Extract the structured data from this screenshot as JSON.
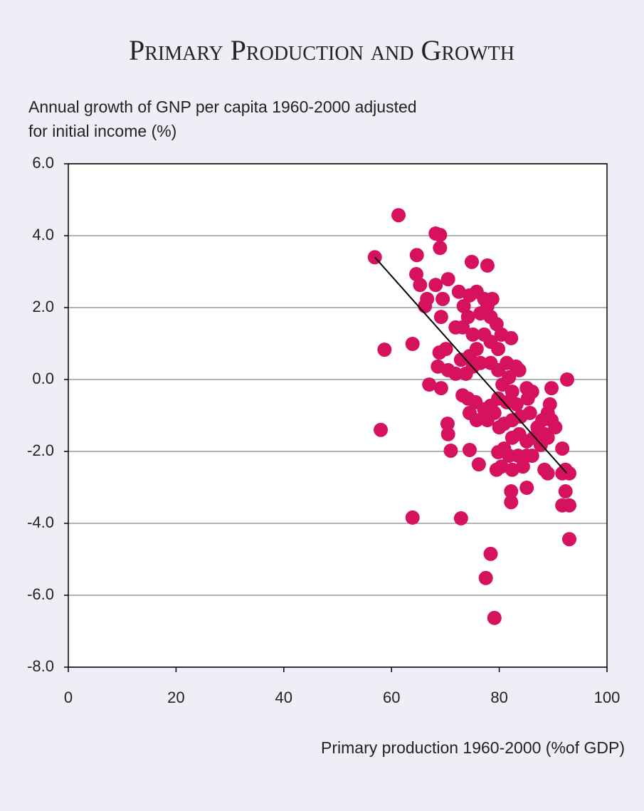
{
  "chart_data": {
    "type": "scatter",
    "title": "Primary Production and Growth",
    "ylabel": [
      "Annual growth of GNP per capita 1960-2000 adjusted",
      "for initial income (%)"
    ],
    "xlabel": "Primary production 1960-2000 (%of GDP)",
    "color": "#d6125e",
    "x": [
      56.9,
      61.3,
      58.7,
      58.0,
      63.9,
      63.9,
      68.2,
      69.0,
      69.0,
      74.9,
      77.8,
      64.7,
      64.6,
      65.3,
      66.6,
      66.2,
      68.2,
      70.5,
      69.5,
      69.2,
      68.9,
      70.1,
      68.6,
      69.2,
      67.0,
      70.4,
      70.5,
      71.0,
      72.9,
      74.5,
      76.2,
      78.4,
      77.5,
      79.1,
      72.5,
      73.4,
      74.5,
      75.8,
      74.2,
      73.2,
      71.9,
      75.1,
      76.5,
      77.2,
      77.8,
      78.7,
      78.4,
      79.5,
      78.4,
      79.8,
      77.2,
      75.8,
      74.5,
      72.9,
      71.9,
      70.5,
      73.8,
      75.1,
      76.5,
      78.4,
      79.8,
      81.4,
      82.2,
      80.4,
      81.8,
      83.1,
      80.6,
      82.4,
      83.7,
      85.1,
      86.1,
      85.3,
      83.2,
      81.4,
      79.8,
      78.4,
      77.2,
      75.6,
      74.2,
      73.2,
      74.5,
      75.8,
      77.8,
      79.1,
      80.0,
      80.9,
      82.4,
      84.0,
      85.7,
      87.1,
      88.0,
      89.0,
      90.4,
      89.0,
      87.7,
      86.4,
      85.1,
      83.7,
      82.4,
      80.9,
      79.8,
      81.8,
      83.5,
      85.1,
      84.4,
      82.4,
      80.4,
      79.5,
      82.2,
      82.2,
      85.1,
      86.1,
      87.7,
      88.4,
      89.7,
      89.4,
      91.7,
      92.3,
      91.7,
      93.0,
      88.4,
      89.0,
      92.3,
      93.0,
      91.7,
      93.0,
      92.6,
      89.7
    ],
    "y": [
      3.4,
      4.57,
      0.83,
      -1.4,
      0.99,
      -3.84,
      4.06,
      4.02,
      3.66,
      3.27,
      3.17,
      3.46,
      2.93,
      2.63,
      2.24,
      2.04,
      2.63,
      2.79,
      2.24,
      1.74,
      0.75,
      0.85,
      0.36,
      -0.24,
      -0.14,
      -1.23,
      -1.52,
      -1.98,
      -3.86,
      -1.96,
      -2.36,
      -4.85,
      -5.52,
      -6.63,
      2.44,
      2.04,
      2.34,
      2.44,
      1.74,
      1.45,
      1.45,
      1.25,
      1.84,
      2.24,
      2.04,
      2.24,
      1.74,
      1.54,
      1.05,
      0.85,
      1.25,
      0.85,
      0.65,
      0.55,
      0.16,
      0.26,
      0.16,
      0.36,
      0.46,
      0.46,
      0.26,
      0.46,
      1.15,
      1.25,
      0.06,
      0.36,
      -0.14,
      -0.34,
      0.26,
      -0.24,
      -0.34,
      -0.53,
      -0.69,
      -0.63,
      -0.53,
      -0.73,
      -0.83,
      -0.63,
      -0.53,
      -0.44,
      -0.93,
      -1.13,
      -1.13,
      -0.93,
      -1.33,
      -1.23,
      -1.13,
      -1.03,
      -0.93,
      -1.33,
      -1.13,
      -0.93,
      -1.33,
      -1.62,
      -1.72,
      -1.62,
      -1.72,
      -1.52,
      -1.62,
      -1.92,
      -2.02,
      -2.12,
      -2.12,
      -2.12,
      -2.42,
      -2.51,
      -2.42,
      -2.51,
      -3.11,
      -3.41,
      -3.01,
      -2.12,
      -1.82,
      -1.52,
      -1.13,
      -0.69,
      -1.92,
      -2.51,
      -2.61,
      -2.61,
      -2.51,
      -2.61,
      -3.11,
      -3.5,
      -3.5,
      -4.44,
      0.0,
      -0.24
    ],
    "trendline": {
      "x": [
        56.9,
        92.5
      ],
      "y": [
        3.4,
        -2.6
      ],
      "color": "#000000"
    },
    "xlim": [
      0,
      100
    ],
    "xticks": [
      0,
      20,
      40,
      60,
      80,
      100
    ],
    "ylim": [
      -8,
      6
    ],
    "yticks": [
      {
        "value": 6,
        "label": "6.0"
      },
      {
        "value": 4,
        "label": "4.0"
      },
      {
        "value": 2,
        "label": "2.0"
      },
      {
        "value": 0,
        "label": "0.0"
      },
      {
        "value": -2,
        "label": "-2.0"
      },
      {
        "value": -4,
        "label": "-4.0"
      },
      {
        "value": -6,
        "label": "-6.0"
      },
      {
        "value": -8,
        "label": "-8.0"
      }
    ],
    "grid": true
  }
}
